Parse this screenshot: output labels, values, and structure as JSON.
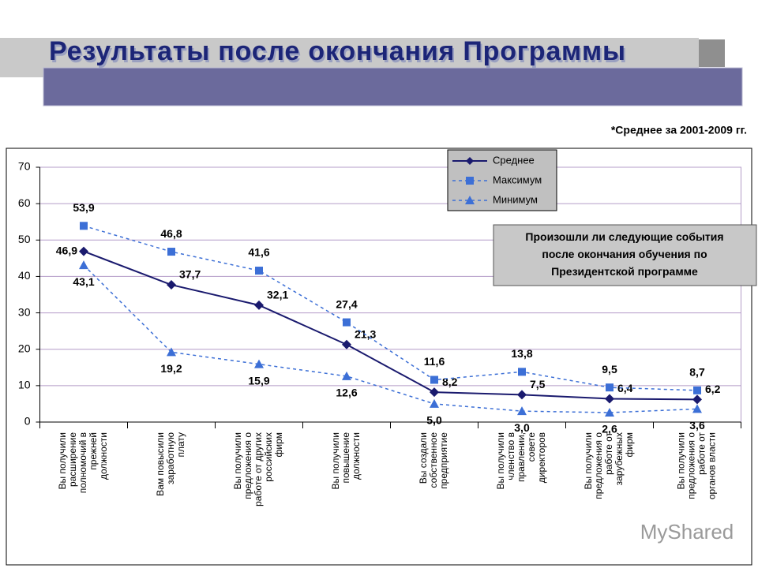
{
  "chart_data": {
    "type": "line",
    "title": "Результаты после окончания Программы",
    "note": "*Среднее за 2001-2009 гг.",
    "annotation": "Произошли ли следующие события\nпосле окончания обучения по\nПрезидентской программе",
    "watermark": "MyShared",
    "categories": [
      "Вы получили\nрасширение\nполномочий в\nпрежней\nдолжности",
      "Вам повысили\nзаработную\nплату",
      "Вы получили\nпредложения о\nработе от других\nроссийских\nфирм",
      "Вы получили\nповышение\nдолжности",
      "Вы создали\nсобственное\nпредприятие",
      "Вы получили\nчленство в\nправлении,\nсовете\nдиректоров",
      "Вы получили\nпредложения о\nработе от\nзарубежных\nфирм",
      "Вы получили\nпредложения о\nработе от\nорганов власти"
    ],
    "series": [
      {
        "name": "Среднее",
        "color": "#1a1a6e",
        "dash": false,
        "marker": "diamond",
        "values": [
          46.9,
          37.7,
          32.1,
          21.3,
          8.2,
          7.5,
          6.4,
          6.2
        ],
        "value_labels": [
          "46,9",
          "37,7",
          "32,1",
          "21,3",
          "8,2",
          "7,5",
          "6,4",
          "6,2"
        ]
      },
      {
        "name": "Максимум",
        "color": "#3c6fd6",
        "dash": true,
        "marker": "square",
        "values": [
          53.9,
          46.8,
          41.6,
          27.4,
          11.6,
          13.8,
          9.5,
          8.7
        ],
        "value_labels": [
          "53,9",
          "46,8",
          "41,6",
          "27,4",
          "11,6",
          "13,8",
          "9,5",
          "8,7"
        ]
      },
      {
        "name": "Минимум",
        "color": "#3c6fd6",
        "dash": true,
        "marker": "triangle",
        "values": [
          43.1,
          19.2,
          15.9,
          12.6,
          5.0,
          3.0,
          2.6,
          3.6
        ],
        "value_labels": [
          "43,1",
          "19,2",
          "15,9",
          "12,6",
          "5,0",
          "3,0",
          "2,6",
          "3,6"
        ]
      }
    ],
    "ylim": [
      0,
      70
    ],
    "yticks": [
      0,
      10,
      20,
      30,
      40,
      50,
      60,
      70
    ],
    "grid": true
  }
}
